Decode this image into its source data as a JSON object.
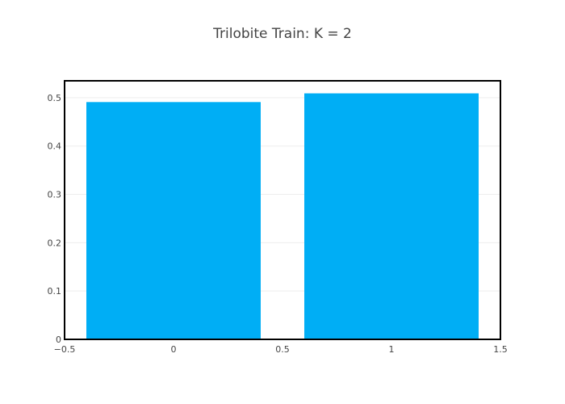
{
  "chart_data": {
    "type": "bar",
    "title": "Trilobite Train: K = 2",
    "xlabel": "",
    "ylabel": "",
    "x": [
      0,
      1
    ],
    "values": [
      0.491,
      0.509
    ],
    "bar_width": 0.8,
    "xlim": [
      -0.5,
      1.5
    ],
    "ylim": [
      0,
      0.535
    ],
    "x_ticks": [
      -0.5,
      0,
      0.5,
      1,
      1.5
    ],
    "x_tick_labels": [
      "−0.5",
      "0",
      "0.5",
      "1",
      "1.5"
    ],
    "y_ticks": [
      0,
      0.1,
      0.2,
      0.3,
      0.4,
      0.5
    ],
    "y_tick_labels": [
      "0",
      "0.1",
      "0.2",
      "0.3",
      "0.4",
      "0.5"
    ],
    "grid": true,
    "legend": false,
    "colors": {
      "bar": "#00aef5",
      "grid": "#eeeeee",
      "frame": "#000000",
      "text": "#444444"
    }
  }
}
